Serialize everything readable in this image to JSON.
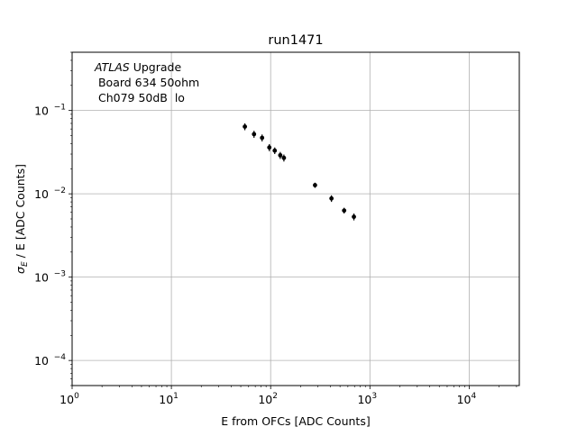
{
  "chart_data": {
    "type": "scatter",
    "title": "run1471",
    "xlabel": "E from OFCs [ADC Counts]",
    "ylabel": {
      "symbol": "σ",
      "subscript": "E",
      "rest": " / E [ADC Counts]"
    },
    "xscale": "log",
    "yscale": "log",
    "xlim": [
      1,
      32000
    ],
    "ylim": [
      5e-05,
      0.5
    ],
    "grid": true,
    "x_ticks": [
      {
        "value": 1,
        "base": "10",
        "exp": "0"
      },
      {
        "value": 10,
        "base": "10",
        "exp": "1"
      },
      {
        "value": 100,
        "base": "10",
        "exp": "2"
      },
      {
        "value": 1000,
        "base": "10",
        "exp": "3"
      },
      {
        "value": 10000,
        "base": "10",
        "exp": "4"
      }
    ],
    "y_ticks": [
      {
        "value": 0.0001,
        "base": "10",
        "exp": "−4"
      },
      {
        "value": 0.001,
        "base": "10",
        "exp": "−3"
      },
      {
        "value": 0.01,
        "base": "10",
        "exp": "−2"
      },
      {
        "value": 0.1,
        "base": "10",
        "exp": "−1"
      }
    ],
    "annotation": {
      "atlas": "ATLAS",
      "upgrade": " Upgrade",
      "line2": " Board 634 50ohm",
      "line3": " Ch079 50dB  lo"
    },
    "series": [
      {
        "color": "#000000",
        "points": [
          {
            "x": 55,
            "y": 0.064,
            "yerr": 0.006
          },
          {
            "x": 68,
            "y": 0.052,
            "yerr": 0.005
          },
          {
            "x": 82,
            "y": 0.047,
            "yerr": 0.0045
          },
          {
            "x": 97,
            "y": 0.036,
            "yerr": 0.0035
          },
          {
            "x": 110,
            "y": 0.033,
            "yerr": 0.003
          },
          {
            "x": 125,
            "y": 0.029,
            "yerr": 0.0028
          },
          {
            "x": 136,
            "y": 0.027,
            "yerr": 0.0026
          },
          {
            "x": 280,
            "y": 0.0127,
            "yerr": 0.0009
          },
          {
            "x": 410,
            "y": 0.0088,
            "yerr": 0.0008
          },
          {
            "x": 550,
            "y": 0.0063,
            "yerr": 0.0005
          },
          {
            "x": 690,
            "y": 0.0053,
            "yerr": 0.0005
          }
        ]
      }
    ]
  }
}
